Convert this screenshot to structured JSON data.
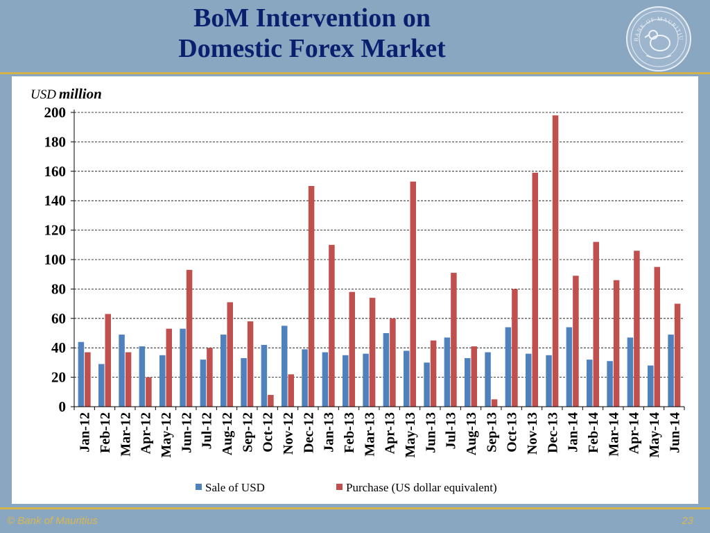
{
  "header": {
    "title_line1": "BoM Intervention on",
    "title_line2": "Domestic Forex Market",
    "seal_text": "BANK OF MAURITIUS"
  },
  "footer": {
    "copyright": "© Bank of Mauritius",
    "page_number": "23"
  },
  "colors": {
    "background": "#8aa7c2",
    "title": "#0c1f6e",
    "accent_gold": "#d4b24a",
    "sale_series": "#4f81bd",
    "purchase_series": "#c0504d"
  },
  "chart_data": {
    "type": "bar",
    "unit_label_prefix": "USD",
    "unit_label_suffix": "million",
    "ylim": [
      0,
      200
    ],
    "yticks": [
      0,
      20,
      40,
      60,
      80,
      100,
      120,
      140,
      160,
      180,
      200
    ],
    "grid": true,
    "legend_position": "bottom",
    "categories": [
      "Jan-12",
      "Feb-12",
      "Mar-12",
      "Apr-12",
      "May-12",
      "Jun-12",
      "Jul-12",
      "Aug-12",
      "Sep-12",
      "Oct-12",
      "Nov-12",
      "Dec-12",
      "Jan-13",
      "Feb-13",
      "Mar-13",
      "Apr-13",
      "May-13",
      "Jun-13",
      "Jul-13",
      "Aug-13",
      "Sep-13",
      "Oct-13",
      "Nov-13",
      "Dec-13",
      "Jan-14",
      "Feb-14",
      "Mar-14",
      "Apr-14",
      "May-14",
      "Jun-14"
    ],
    "series": [
      {
        "name": "Sale of USD",
        "values": [
          44,
          29,
          49,
          41,
          35,
          53,
          32,
          49,
          33,
          42,
          55,
          39,
          37,
          35,
          36,
          50,
          38,
          30,
          47,
          33,
          37,
          54,
          36,
          35,
          54,
          32,
          31,
          47,
          28,
          49
        ]
      },
      {
        "name": "Purchase (US dollar equivalent)",
        "values": [
          37,
          63,
          37,
          20,
          53,
          93,
          40,
          71,
          58,
          8,
          22,
          150,
          110,
          78,
          74,
          60,
          153,
          45,
          91,
          41,
          5,
          80,
          159,
          198,
          89,
          112,
          86,
          106,
          95,
          70
        ]
      }
    ]
  }
}
